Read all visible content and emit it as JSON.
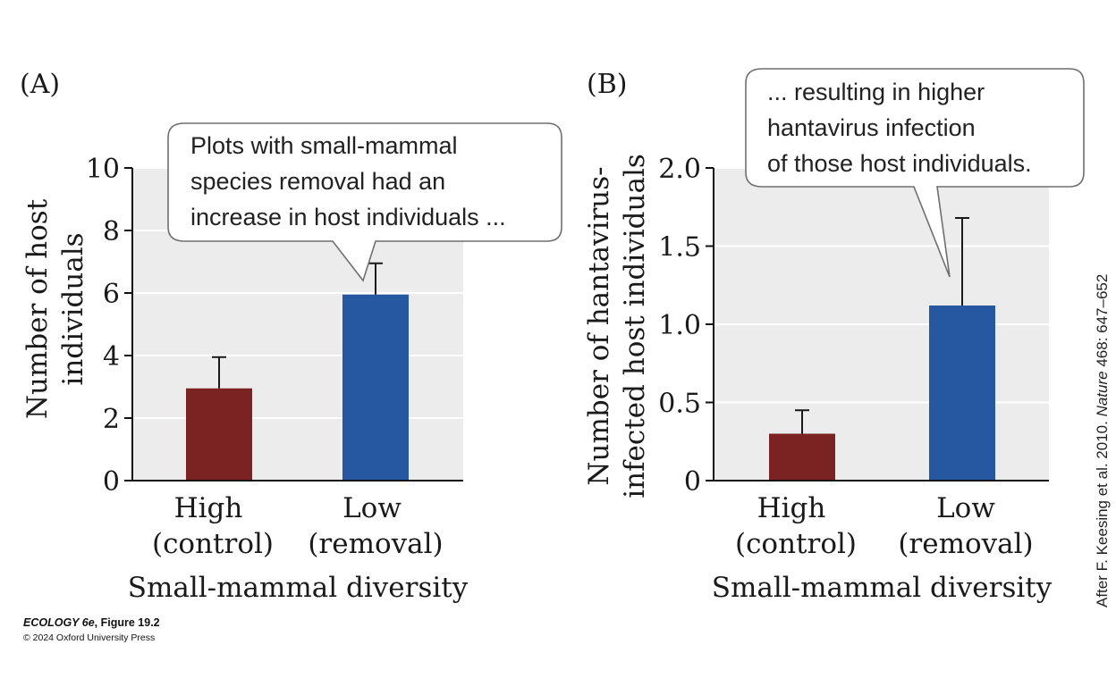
{
  "chart_data": [
    {
      "type": "bar",
      "panel_label": "(A)",
      "categories": [
        {
          "line1": "High",
          "line2": "(control)"
        },
        {
          "line1": "Low",
          "line2": "(removal)"
        }
      ],
      "values": [
        2.95,
        5.95
      ],
      "error_upper": [
        3.95,
        6.95
      ],
      "colors": [
        "#7b2323",
        "#2558a0"
      ],
      "xlabel": "Small-mammal diversity",
      "ylabel": [
        "Number of host",
        "individuals"
      ],
      "ylim": [
        0,
        10
      ],
      "yticks": [
        0,
        2,
        4,
        6,
        8,
        10
      ],
      "ytick_labels": [
        "0",
        "2",
        "4",
        "6",
        "8",
        "10"
      ],
      "grid": true,
      "callout": [
        "Plots with small-mammal",
        "species removal had an",
        "increase in host individuals ..."
      ]
    },
    {
      "type": "bar",
      "panel_label": "(B)",
      "categories": [
        {
          "line1": "High",
          "line2": "(control)"
        },
        {
          "line1": "Low",
          "line2": "(removal)"
        }
      ],
      "values": [
        0.3,
        1.12
      ],
      "error_upper": [
        0.45,
        1.68
      ],
      "colors": [
        "#7b2323",
        "#2558a0"
      ],
      "xlabel": "Small-mammal diversity",
      "ylabel": [
        "Number of hantavirus-",
        "infected host individuals"
      ],
      "ylim": [
        0,
        2.0
      ],
      "yticks": [
        0,
        0.5,
        1.0,
        1.5,
        2.0
      ],
      "ytick_labels": [
        "0",
        "0.5",
        "1.0",
        "1.5",
        "2.0"
      ],
      "grid": true,
      "callout": [
        "... resulting in higher",
        "hantavirus infection",
        "of those host individuals."
      ]
    }
  ],
  "credit": {
    "book": "ECOLOGY 6e",
    "figure": ", Figure 19.2",
    "copyright": "© 2024 Oxford University Press"
  },
  "source": {
    "before": "After F. Keesing et al. 2010. ",
    "journal": "Nature",
    "after": " 468: 647–652"
  }
}
